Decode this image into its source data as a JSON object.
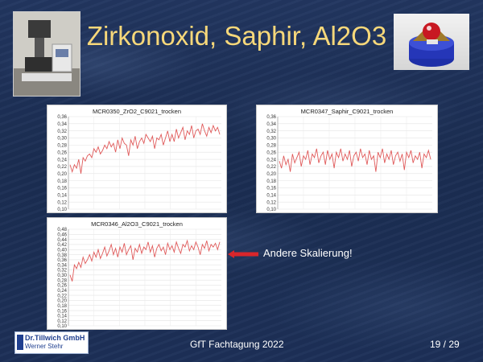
{
  "slide": {
    "title": "Zirkonoxid, Saphir, Al2O3",
    "note": "Andere Skalierung!",
    "footer": "GfT Fachtagung 2022",
    "page": "19 / 29",
    "logo": {
      "line1": "Dr.Tillwich GmbH",
      "line2": "Werner Stehr"
    },
    "colors": {
      "title": "#f7d87a",
      "arrow": "#d9262b",
      "line": "#e05a5a"
    },
    "icons": [
      "lab-instrument-photo",
      "test-rig-photo",
      "arrow-left-icon"
    ]
  },
  "chart_data": [
    {
      "type": "line",
      "title": "MCR0350_ZrO2_C9021_trocken",
      "ylim": [
        0.1,
        0.36
      ],
      "yticks": [
        "0,36",
        "0,34",
        "0,32",
        "0,30",
        "0,28",
        "0,26",
        "0,24",
        "0,22",
        "0,20",
        "0,18",
        "0,16",
        "0,14",
        "0,12",
        "0,10"
      ],
      "grid": true,
      "values": [
        0.225,
        0.205,
        0.225,
        0.215,
        0.24,
        0.2,
        0.245,
        0.235,
        0.25,
        0.255,
        0.245,
        0.27,
        0.26,
        0.275,
        0.255,
        0.265,
        0.28,
        0.27,
        0.29,
        0.275,
        0.285,
        0.26,
        0.295,
        0.27,
        0.3,
        0.285,
        0.28,
        0.25,
        0.295,
        0.28,
        0.305,
        0.27,
        0.29,
        0.3,
        0.285,
        0.31,
        0.3,
        0.29,
        0.305,
        0.27,
        0.3,
        0.295,
        0.31,
        0.28,
        0.3,
        0.32,
        0.29,
        0.31,
        0.29,
        0.325,
        0.3,
        0.315,
        0.33,
        0.295,
        0.32,
        0.31,
        0.335,
        0.3,
        0.32,
        0.325,
        0.31,
        0.34,
        0.32,
        0.305,
        0.33,
        0.315,
        0.335,
        0.32,
        0.33,
        0.31
      ]
    },
    {
      "type": "line",
      "title": "MCR0347_Saphir_C9021_trocken",
      "ylim": [
        0.1,
        0.36
      ],
      "yticks": [
        "0,36",
        "0,34",
        "0,32",
        "0,30",
        "0,28",
        "0,26",
        "0,24",
        "0,22",
        "0,20",
        "0,18",
        "0,16",
        "0,14",
        "0,12",
        "0,10"
      ],
      "grid": true,
      "values": [
        0.235,
        0.215,
        0.25,
        0.225,
        0.24,
        0.205,
        0.255,
        0.23,
        0.245,
        0.26,
        0.22,
        0.25,
        0.24,
        0.265,
        0.225,
        0.255,
        0.245,
        0.27,
        0.23,
        0.25,
        0.26,
        0.225,
        0.265,
        0.24,
        0.255,
        0.215,
        0.26,
        0.245,
        0.27,
        0.235,
        0.255,
        0.24,
        0.265,
        0.22,
        0.25,
        0.26,
        0.235,
        0.27,
        0.245,
        0.255,
        0.225,
        0.265,
        0.24,
        0.25,
        0.205,
        0.26,
        0.245,
        0.27,
        0.23,
        0.255,
        0.24,
        0.265,
        0.225,
        0.25,
        0.26,
        0.235,
        0.255,
        0.21,
        0.26,
        0.245,
        0.265,
        0.23,
        0.25,
        0.24,
        0.26,
        0.215,
        0.255,
        0.245,
        0.265,
        0.24
      ]
    },
    {
      "type": "line",
      "title": "MCR0346_Al2O3_C9021_trocken",
      "ylim": [
        0.1,
        0.48
      ],
      "yticks": [
        "0,48",
        "0,46",
        "0,44",
        "0,42",
        "0,40",
        "0,38",
        "0,36",
        "0,34",
        "0,32",
        "0,30",
        "0,28",
        "0,26",
        "0,24",
        "0,22",
        "0,20",
        "0,18",
        "0,16",
        "0,14",
        "0,12",
        "0,10"
      ],
      "grid": true,
      "values": [
        0.3,
        0.275,
        0.34,
        0.325,
        0.35,
        0.33,
        0.37,
        0.345,
        0.36,
        0.38,
        0.355,
        0.39,
        0.37,
        0.4,
        0.365,
        0.385,
        0.41,
        0.375,
        0.395,
        0.42,
        0.38,
        0.405,
        0.37,
        0.41,
        0.39,
        0.425,
        0.38,
        0.4,
        0.415,
        0.36,
        0.405,
        0.39,
        0.42,
        0.385,
        0.41,
        0.4,
        0.43,
        0.39,
        0.415,
        0.37,
        0.405,
        0.42,
        0.395,
        0.41,
        0.38,
        0.425,
        0.4,
        0.415,
        0.39,
        0.43,
        0.405,
        0.385,
        0.42,
        0.41,
        0.435,
        0.395,
        0.415,
        0.4,
        0.43,
        0.41,
        0.38,
        0.42,
        0.405,
        0.435,
        0.395,
        0.42,
        0.41,
        0.425,
        0.4,
        0.43
      ]
    }
  ]
}
